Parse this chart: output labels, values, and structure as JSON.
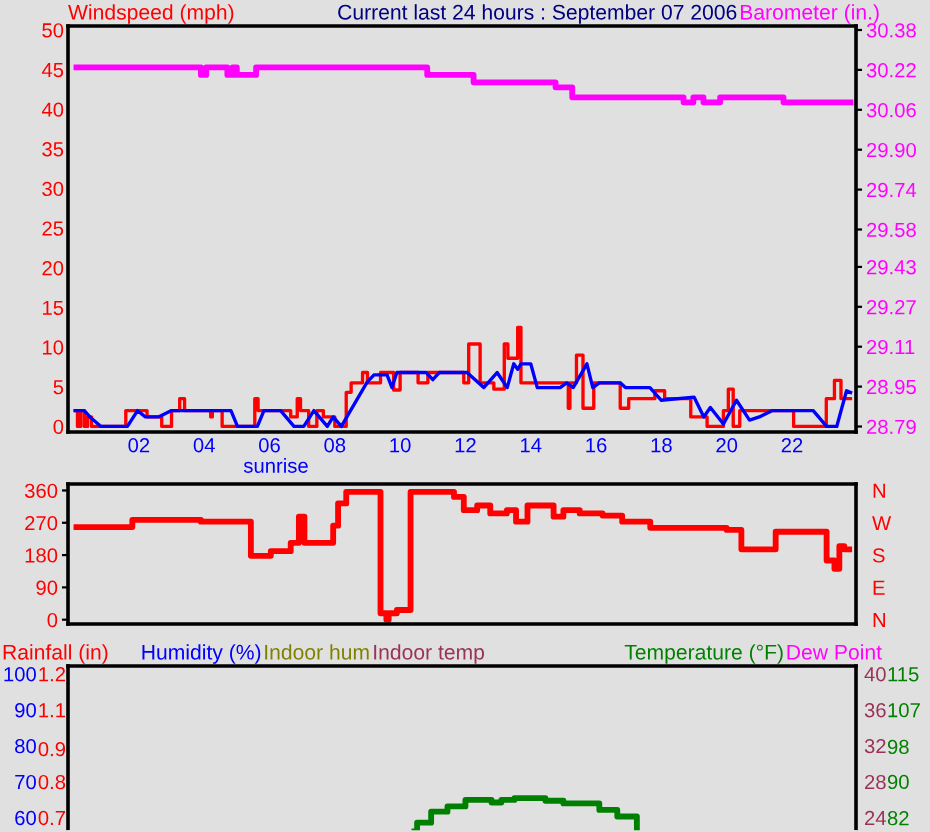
{
  "chart_data": [
    {
      "type": "step",
      "title": "Current last 24 hours : September 07 2006",
      "ylabel": "Windspeed (mph)",
      "y2label": "Barometer (in.)",
      "annotations": [
        "sunrise"
      ],
      "xlim": [
        -0.17,
        23.96
      ],
      "xticks": [
        {
          "value": 2,
          "label": "02"
        },
        {
          "value": 4,
          "label": "04"
        },
        {
          "value": 6,
          "label": "06"
        },
        {
          "value": 8,
          "label": "08"
        },
        10,
        12,
        14,
        16,
        18,
        20,
        22
      ],
      "ylim": [
        -0.7,
        50.5
      ],
      "yticks": [
        0,
        5,
        10,
        15,
        20,
        25,
        30,
        35,
        40,
        45,
        50
      ],
      "y2lim": [
        28.768,
        30.396
      ],
      "y2ticks": [
        28.79,
        28.95,
        29.11,
        29.27,
        29.43,
        29.58,
        29.74,
        {
          "value": 29.9,
          "label": "29.90"
        },
        30.06,
        30.22,
        30.38
      ],
      "series": [
        {
          "color": "#ff0000",
          "type": "step",
          "x": [
            0,
            0.12,
            0.22,
            0.33,
            0.43,
            0.55,
            1.6,
            2.25,
            2.7,
            3.0,
            3.25,
            3.4,
            4.2,
            4.25,
            4.55,
            5.55,
            5.65,
            6.65,
            6.85,
            6.95,
            7.2,
            7.45,
            7.65,
            8.0,
            8.35,
            8.5,
            8.85,
            9.0,
            9.4,
            9.8,
            10.0,
            10.55,
            10.85,
            11.95,
            12.1,
            12.45,
            12.87,
            13.19,
            13.3,
            13.6,
            13.7,
            15.15,
            15.2,
            15.4,
            15.6,
            15.93,
            16.74,
            17.0,
            17.8,
            18.1,
            18.9,
            19.4,
            19.9,
            20.05,
            20.2,
            20.4,
            22.05,
            23.05,
            23.3,
            23.5,
            23.84
          ],
          "values": [
            2.0,
            0,
            2.0,
            0,
            1.2,
            0,
            2.0,
            1.2,
            0,
            2.0,
            3.5,
            2.0,
            1.2,
            2.0,
            0,
            3.5,
            2.0,
            1.2,
            3.5,
            2.0,
            0,
            2.0,
            1.2,
            0,
            4.3,
            5.5,
            6.8,
            5.5,
            6.8,
            4.6,
            6.8,
            5.5,
            6.8,
            5.5,
            10.4,
            5.5,
            4.7,
            10.4,
            8.6,
            12.5,
            5.5,
            2.3,
            5.5,
            9.0,
            2.3,
            5.5,
            2.3,
            3.5,
            4.5,
            3.5,
            1.2,
            0,
            2.0,
            4.7,
            0,
            2.0,
            0,
            3.5,
            5.8,
            3.5,
            3.5
          ]
        },
        {
          "color": "#0000ff",
          "type": "line",
          "x": [
            0,
            0.33,
            0.5,
            0.84,
            1.65,
            1.96,
            2.2,
            2.6,
            3.0,
            4.82,
            5.02,
            5.63,
            5.83,
            6.34,
            6.75,
            7.05,
            7.36,
            7.77,
            7.95,
            8.2,
            8.99,
            9.2,
            9.6,
            9.75,
            9.9,
            10.8,
            11.0,
            11.2,
            12.05,
            12.56,
            12.97,
            13.28,
            13.48,
            13.6,
            13.7,
            14.0,
            14.2,
            14.9,
            15.1,
            15.3,
            15.72,
            15.9,
            16.1,
            16.74,
            16.9,
            17.65,
            18.0,
            19.0,
            19.3,
            19.5,
            19.9,
            20.3,
            20.7,
            21.0,
            21.4,
            22.65,
            23.06,
            23.37,
            23.67,
            23.84
          ],
          "values": [
            2.0,
            2.0,
            1.2,
            0,
            0,
            2.0,
            1.2,
            1.2,
            2.0,
            2.0,
            0,
            0,
            2.0,
            2.0,
            0,
            0,
            2.0,
            0,
            1.2,
            0,
            5.6,
            6.5,
            6.5,
            4.9,
            6.8,
            6.8,
            5.9,
            6.8,
            6.8,
            4.9,
            6.8,
            4.9,
            7.9,
            7.2,
            7.9,
            7.9,
            4.9,
            4.9,
            5.5,
            4.9,
            7.9,
            4.9,
            5.5,
            5.5,
            4.9,
            4.9,
            3.3,
            3.7,
            1.2,
            2.4,
            0.3,
            3.3,
            0.8,
            1.2,
            2.0,
            2.0,
            0,
            0,
            4.5,
            4.2
          ]
        },
        {
          "color": "#ff00ff",
          "type": "step",
          "axis": "y2",
          "x": [
            0,
            3.9,
            4.06,
            4.71,
            4.87,
            5.0,
            5.59,
            10.83,
            12.25,
            14.76,
            15.27,
            18.68,
            18.98,
            19.29,
            19.8,
            21.74,
            23.88
          ],
          "values": [
            30.23,
            30.2,
            30.23,
            30.2,
            30.23,
            30.2,
            30.23,
            30.2,
            30.17,
            30.15,
            30.11,
            30.09,
            30.11,
            30.09,
            30.11,
            30.09,
            30.09
          ]
        }
      ]
    },
    {
      "type": "step",
      "xlim": [
        -0.17,
        23.96
      ],
      "ylim": [
        -12,
        378
      ],
      "yticks": [
        0,
        90,
        180,
        270,
        360
      ],
      "y2_categories": [
        "N",
        "W",
        "S",
        "E",
        "N"
      ],
      "tick_labels": "y",
      "series": [
        {
          "color": "#ff0000",
          "x": [
            0,
            1.8,
            3.9,
            5.43,
            6.04,
            6.65,
            6.9,
            7.07,
            7.95,
            8.1,
            8.35,
            9.4,
            9.58,
            9.65,
            9.9,
            10.32,
            11.65,
            11.95,
            12.36,
            12.76,
            13.27,
            13.55,
            13.9,
            14.7,
            15.0,
            15.5,
            16.2,
            16.8,
            17.66,
            20.0,
            20.45,
            21.5,
            23.06,
            23.3,
            23.45,
            23.6,
            23.84
          ],
          "values": [
            258,
            278,
            273,
            178,
            191,
            214,
            287,
            214,
            262,
            324,
            356,
            18,
            0,
            18,
            27,
            356,
            342,
            305,
            318,
            296,
            305,
            273,
            318,
            287,
            305,
            296,
            290,
            273,
            256,
            250,
            196,
            245,
            165,
            142,
            205,
            196,
            196
          ]
        }
      ]
    },
    {
      "type": "step",
      "xlim": [
        -0.17,
        23.96
      ],
      "tick_labels": "y",
      "legend": "top",
      "ylim": [
        56,
        102.2
      ],
      "yticks": [
        60,
        70,
        80,
        90,
        100
      ],
      "y2lim": [
        78.86,
        116.81
      ],
      "y2ticks": [
        {
          "value": 82.1,
          "label": "82"
        },
        {
          "value": 90.4,
          "label": "90"
        },
        {
          "value": 98.4,
          "label": "98"
        },
        {
          "value": 106.8,
          "label": "107"
        },
        115
      ],
      "y3lim": [
        0.672,
        1.2264
      ],
      "y3ticks": [
        {
          "value": 0.72,
          "label": "0.7"
        },
        {
          "value": 0.84,
          "label": "0.8"
        },
        {
          "value": 0.95,
          "label": "0.9"
        },
        {
          "value": 1.08,
          "label": "1.1"
        },
        1.2
      ],
      "x": [
        10.35,
        10.52,
        10.85,
        10.95,
        11.35,
        11.45,
        11.85,
        12.0,
        12.7,
        12.8,
        13.1,
        13.5,
        14.3,
        14.45,
        15.0,
        16.0,
        16.1,
        16.55,
        16.65,
        17.2,
        17.25
      ],
      "series": [
        {
          "name": "Rainfall (in)",
          "color": "#ff0000",
          "axis": "y3",
          "values": [
            null,
            null,
            null,
            null,
            null,
            null,
            null,
            null,
            null,
            null,
            null,
            null,
            null,
            null,
            null,
            null,
            null,
            null,
            null,
            null,
            null
          ]
        },
        {
          "name": "Humidity (%)",
          "color": "#0000ff",
          "axis": "y",
          "values": [
            null,
            null,
            null,
            null,
            null,
            null,
            null,
            null,
            null,
            null,
            null,
            null,
            null,
            null,
            null,
            null,
            null,
            null,
            null,
            null,
            null
          ]
        },
        {
          "name": "Indoor hum",
          "color": "#808000",
          "axis": "y",
          "values": [
            null,
            null,
            null,
            null,
            null,
            null,
            null,
            null,
            null,
            null,
            null,
            null,
            null,
            null,
            null,
            null,
            null,
            null,
            null,
            null,
            null
          ]
        },
        {
          "name": "Temperature (°F)",
          "color": "#008000",
          "axis": "y2",
          "values": [
            79.0,
            81.0,
            81.0,
            83.5,
            83.5,
            84.7,
            84.7,
            86.2,
            86.2,
            85.6,
            86.2,
            86.6,
            86.6,
            86.0,
            85.4,
            85.4,
            83.9,
            83.9,
            82.4,
            82.4,
            79.0
          ]
        },
        {
          "name": "Dew Point",
          "color": "#ff00ff",
          "axis": "y2",
          "values": [
            null,
            null,
            null,
            null,
            null,
            null,
            null,
            null,
            null,
            null,
            null,
            null,
            null,
            null,
            null,
            null,
            null,
            null,
            null,
            null,
            null
          ]
        }
      ]
    },
    {
      "type": "step",
      "xlim": [
        -0.17,
        23.96
      ],
      "tick_labels": "y",
      "y2label": "Indoor temp",
      "color": "#993355",
      "y2lim": [
        22.4,
        40.88
      ],
      "y2ticks": [
        24,
        28,
        32,
        36,
        40
      ]
    }
  ]
}
